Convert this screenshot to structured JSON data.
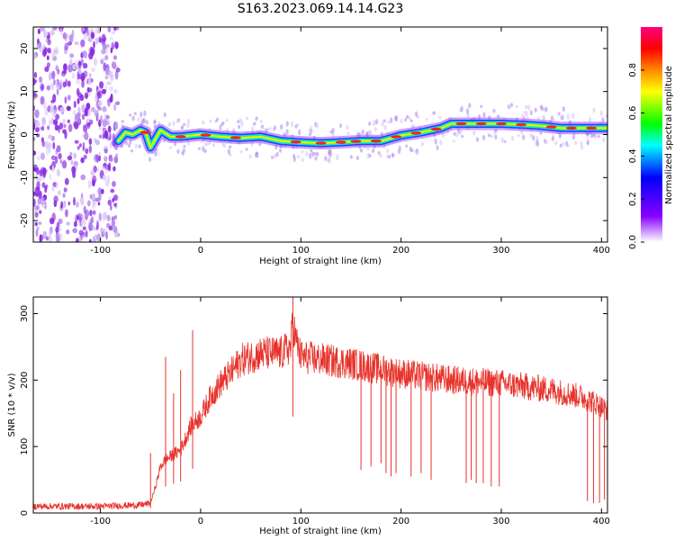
{
  "title": "S163.2023.069.14.14.G23",
  "chart_data": [
    {
      "type": "heatmap",
      "xlabel": "Height of straight line (km)",
      "ylabel": "Frequency (Hz)",
      "xlim": [
        -167,
        406
      ],
      "ylim": [
        -25,
        25
      ],
      "xticks": [
        -100,
        0,
        100,
        200,
        300,
        400
      ],
      "yticks": [
        -20,
        -10,
        0,
        10,
        20
      ],
      "grid": false,
      "noise_region_x": [
        -167,
        -82
      ],
      "ridge": {
        "x": [
          -82,
          -75,
          -68,
          -60,
          -55,
          -50,
          -45,
          -40,
          -30,
          -20,
          0,
          20,
          40,
          60,
          80,
          100,
          120,
          140,
          160,
          180,
          200,
          220,
          240,
          250,
          260,
          280,
          300,
          320,
          340,
          360,
          380,
          406
        ],
        "freq": [
          -1.5,
          0.5,
          0.0,
          1.0,
          0.5,
          -3.0,
          -1.0,
          1.0,
          -0.5,
          -0.5,
          0.0,
          -0.5,
          -0.8,
          -0.5,
          -1.5,
          -1.8,
          -2.0,
          -1.8,
          -1.5,
          -1.5,
          -0.2,
          0.5,
          1.5,
          2.5,
          2.5,
          2.5,
          2.5,
          2.3,
          2.0,
          1.5,
          1.5,
          1.5
        ]
      },
      "peak_amplitude_x": [
        -55,
        -20,
        5,
        35,
        95,
        120,
        140,
        155,
        175,
        195,
        215,
        235,
        260,
        280,
        300,
        320,
        350,
        370,
        390
      ]
    },
    {
      "type": "line",
      "xlabel": "Height of straight line (km)",
      "ylabel": "SNR (10 * v/v)",
      "xlim": [
        -167,
        406
      ],
      "ylim": [
        0,
        325
      ],
      "xticks": [
        -100,
        0,
        100,
        200,
        300,
        400
      ],
      "yticks": [
        0,
        100,
        200,
        300
      ],
      "grid": false,
      "series": [
        {
          "color": "#e8322b",
          "envelope": {
            "x": [
              -167,
              -100,
              -60,
              -50,
              -45,
              -40,
              -35,
              -30,
              -20,
              -10,
              0,
              10,
              20,
              30,
              40,
              60,
              80,
              90,
              92,
              95,
              100,
              150,
              200,
              250,
              300,
              350,
              380,
              395,
              400,
              406
            ],
            "y": [
              10,
              10,
              12,
              15,
              40,
              70,
              80,
              85,
              95,
              130,
              145,
              175,
              195,
              210,
              230,
              240,
              240,
              250,
              290,
              260,
              235,
              225,
              210,
              200,
              195,
              185,
              175,
              165,
              160,
              155
            ]
          },
          "deep_dips": [
            {
              "x": 160,
              "y": 65
            },
            {
              "x": 170,
              "y": 70
            },
            {
              "x": 180,
              "y": 75
            },
            {
              "x": 185,
              "y": 60
            },
            {
              "x": 190,
              "y": 55
            },
            {
              "x": 195,
              "y": 60
            },
            {
              "x": 210,
              "y": 55
            },
            {
              "x": 220,
              "y": 60
            },
            {
              "x": 230,
              "y": 50
            },
            {
              "x": 265,
              "y": 45
            },
            {
              "x": 270,
              "y": 50
            },
            {
              "x": 275,
              "y": 45
            },
            {
              "x": 282,
              "y": 45
            },
            {
              "x": 290,
              "y": 40
            },
            {
              "x": 298,
              "y": 40
            },
            {
              "x": 386,
              "y": 18
            },
            {
              "x": 392,
              "y": 15
            },
            {
              "x": 398,
              "y": 15
            },
            {
              "x": 403,
              "y": 20
            }
          ],
          "spike_peaks": [
            {
              "x": -50,
              "y": 90
            },
            {
              "x": -35,
              "y": 235
            },
            {
              "x": -27,
              "y": 180
            },
            {
              "x": -20,
              "y": 215
            },
            {
              "x": -8,
              "y": 275
            },
            {
              "x": 92,
              "y": 325
            }
          ]
        }
      ]
    }
  ],
  "colorbar": {
    "label": "Normalized spectral amplitude",
    "ticks": [
      0.0,
      0.2,
      0.4,
      0.6,
      0.8
    ],
    "range": [
      0,
      1
    ],
    "colors": [
      "#ffffff",
      "#8800ff",
      "#0000ff",
      "#00ffff",
      "#00ff00",
      "#ffff00",
      "#ff8800",
      "#ff0000",
      "#ff0080"
    ]
  }
}
